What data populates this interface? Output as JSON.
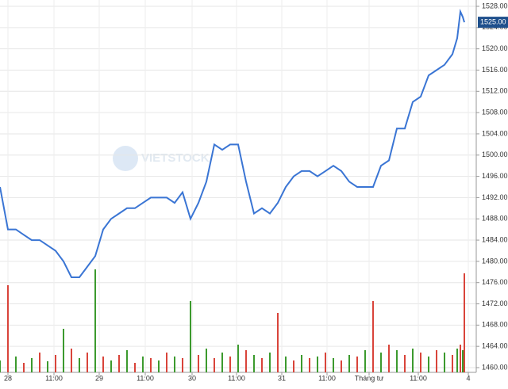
{
  "chart_data": {
    "type": "line",
    "watermark": "VIETSTOCK",
    "x": [
      0,
      2,
      4,
      6,
      8,
      10,
      12,
      14,
      16,
      18,
      20,
      22,
      24,
      26,
      28,
      30,
      32,
      34,
      36,
      38,
      40,
      42,
      44,
      46,
      48,
      50,
      52,
      54,
      56,
      58,
      60,
      62,
      64,
      66,
      68,
      70,
      72,
      74,
      76,
      78,
      80,
      82,
      84,
      86,
      88,
      90,
      92,
      94,
      96,
      98,
      100,
      102,
      104,
      106,
      108,
      110,
      112,
      114,
      115.2,
      116,
      116.6,
      117
    ],
    "values": [
      1494,
      1486,
      1486,
      1485,
      1484,
      1484,
      1483,
      1482,
      1480,
      1477,
      1477,
      1479,
      1481,
      1486,
      1488,
      1489,
      1490,
      1490,
      1491,
      1492,
      1492,
      1492,
      1491,
      1493,
      1488,
      1491,
      1495,
      1502,
      1501,
      1502,
      1502,
      1495,
      1489,
      1490,
      1489,
      1491,
      1494,
      1496,
      1497,
      1497,
      1496,
      1497,
      1498,
      1497,
      1495,
      1494,
      1494,
      1494,
      1498,
      1499,
      1505,
      1505,
      1510,
      1511,
      1515,
      1516,
      1517,
      1519,
      1522,
      1527,
      1526,
      1525
    ],
    "color": "#3a75d4",
    "last_price": {
      "value": 1525,
      "label": "1525.00"
    },
    "volume": {
      "values": [
        15,
        110,
        20,
        12,
        18,
        25,
        14,
        22,
        55,
        30,
        18,
        25,
        130,
        20,
        15,
        22,
        28,
        12,
        20,
        18,
        15,
        25,
        20,
        18,
        90,
        22,
        30,
        18,
        25,
        20,
        35,
        28,
        22,
        18,
        25,
        75,
        20,
        15,
        22,
        18,
        20,
        25,
        18,
        15,
        22,
        20,
        28,
        90,
        25,
        35,
        28,
        22,
        30,
        25,
        20,
        28,
        25,
        22,
        30,
        35,
        28,
        125
      ],
      "colors": [
        "#3c9a2e",
        "#d9443a"
      ],
      "ylim": [
        0,
        140
      ]
    },
    "xlim": [
      0,
      120
    ],
    "xticks": [
      {
        "value": 2,
        "label": "28"
      },
      {
        "value": 13.6,
        "label": "11:00"
      },
      {
        "value": 25,
        "label": "29"
      },
      {
        "value": 36.6,
        "label": "11:00"
      },
      {
        "value": 48.4,
        "label": "30"
      },
      {
        "value": 59.6,
        "label": "11:00"
      },
      {
        "value": 71,
        "label": "31"
      },
      {
        "value": 82.4,
        "label": "11:00"
      },
      {
        "value": 93,
        "label": "Tháng tư"
      },
      {
        "value": 105.4,
        "label": "11:00"
      },
      {
        "value": 118,
        "label": "4"
      }
    ],
    "ylim": [
      1460,
      1528
    ],
    "yticks": [
      {
        "value": 1460,
        "label": "1460.00"
      },
      {
        "value": 1464,
        "label": "1464.00"
      },
      {
        "value": 1468,
        "label": "1468.00"
      },
      {
        "value": 1472,
        "label": "1472.00"
      },
      {
        "value": 1476,
        "label": "1476.00"
      },
      {
        "value": 1480,
        "label": "1480.00"
      },
      {
        "value": 1484,
        "label": "1484.00"
      },
      {
        "value": 1488,
        "label": "1488.00"
      },
      {
        "value": 1492,
        "label": "1492.00"
      },
      {
        "value": 1496,
        "label": "1496.00"
      },
      {
        "value": 1500,
        "label": "1500.00"
      },
      {
        "value": 1504,
        "label": "1504.00"
      },
      {
        "value": 1508,
        "label": "1508.00"
      },
      {
        "value": 1512,
        "label": "1512.00"
      },
      {
        "value": 1516,
        "label": "1516.00"
      },
      {
        "value": 1520,
        "label": "1520.00"
      },
      {
        "value": 1524,
        "label": "1524.00"
      },
      {
        "value": 1528,
        "label": "1528.00"
      }
    ],
    "grid": true
  }
}
